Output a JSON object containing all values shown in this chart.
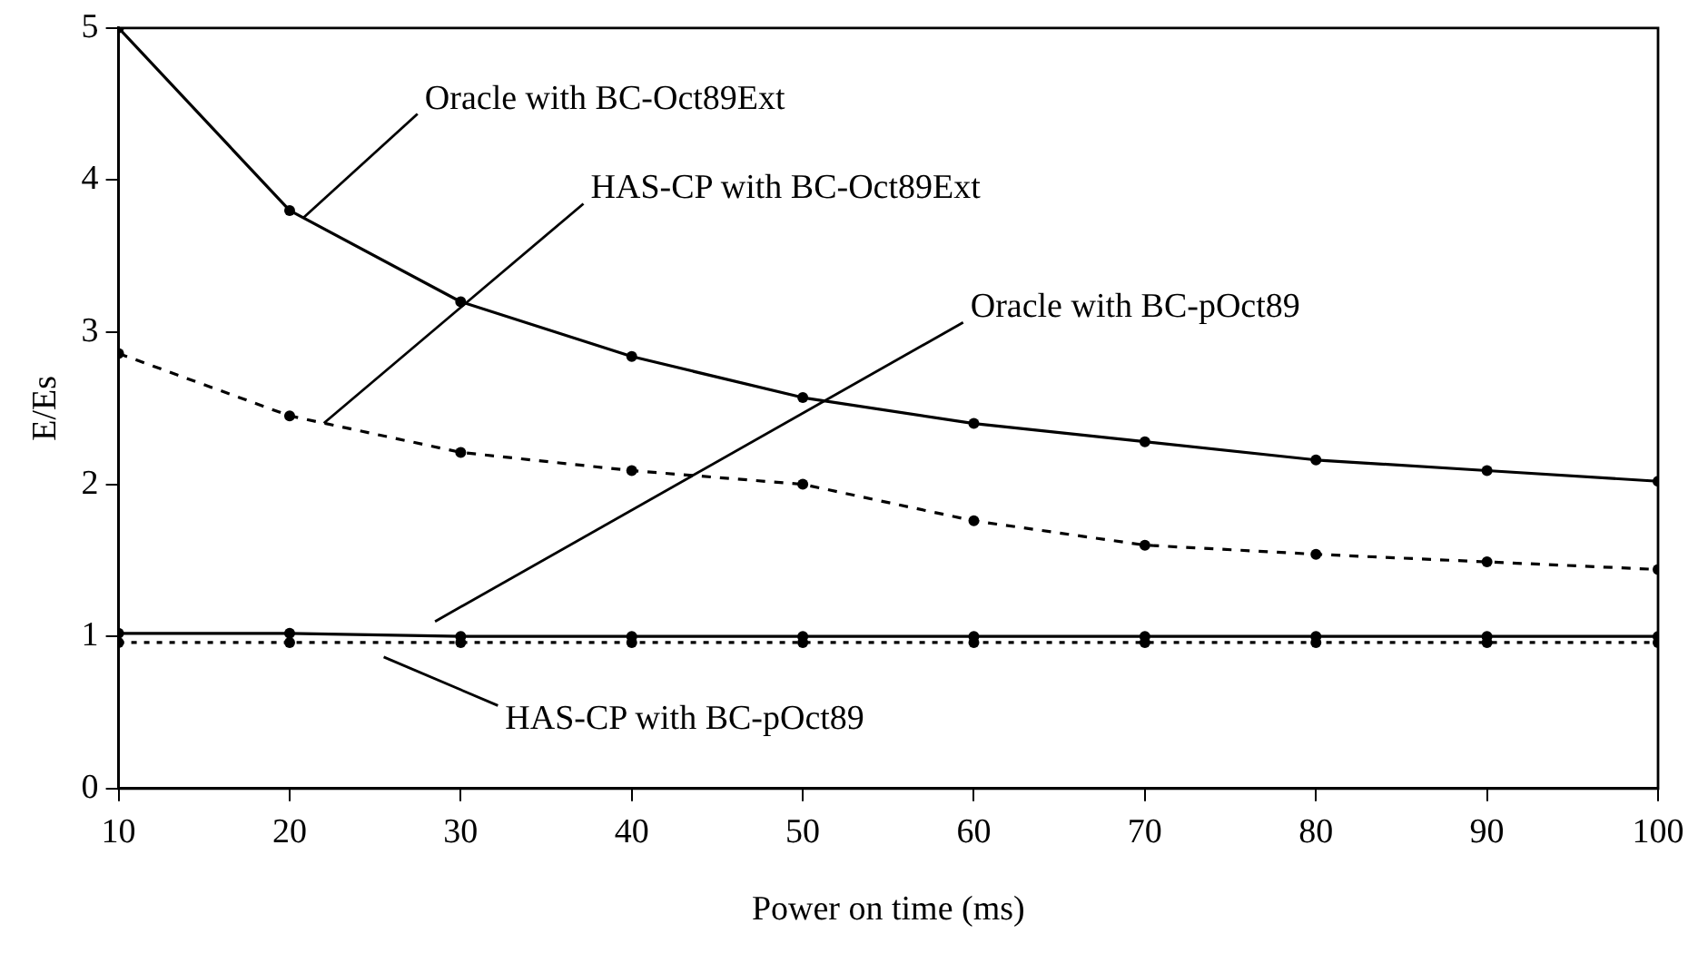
{
  "chart_data": {
    "type": "line",
    "xlabel": "Power on time (ms)",
    "ylabel": "E/Es",
    "x": [
      10,
      20,
      30,
      40,
      50,
      60,
      70,
      80,
      90,
      100
    ],
    "xlim": [
      10,
      100
    ],
    "xticks": [
      10,
      20,
      30,
      40,
      50,
      60,
      70,
      80,
      90,
      100
    ],
    "ylim": [
      0,
      5
    ],
    "yticks": [
      0,
      1,
      2,
      3,
      4,
      5
    ],
    "grid": false,
    "legend": false,
    "marker": "circle",
    "series": [
      {
        "name": "Oracle with BC-Oct89Ext",
        "color": "#000000",
        "line_style": "solid",
        "values": [
          5,
          3.8,
          3.2,
          2.84,
          2.57,
          2.4,
          2.28,
          2.16,
          2.09,
          2.02
        ]
      },
      {
        "name": "HAS-CP with BC-Oct89Ext",
        "color": "#000000",
        "line_style": "dashed",
        "values": [
          2.86,
          2.45,
          2.21,
          2.09,
          2.0,
          1.76,
          1.6,
          1.54,
          1.49,
          1.44
        ]
      },
      {
        "name": "Oracle with BC-pOct89",
        "color": "#000000",
        "line_style": "solid",
        "values": [
          1.02,
          1.02,
          1.0,
          1.0,
          1.0,
          1.0,
          1.0,
          1.0,
          1.0,
          1.0
        ]
      },
      {
        "name": "HAS-CP with BC-pOct89",
        "color": "#000000",
        "line_style": "dotted",
        "values": [
          0.96,
          0.96,
          0.96,
          0.96,
          0.96,
          0.96,
          0.96,
          0.96,
          0.96,
          0.96
        ]
      }
    ]
  }
}
